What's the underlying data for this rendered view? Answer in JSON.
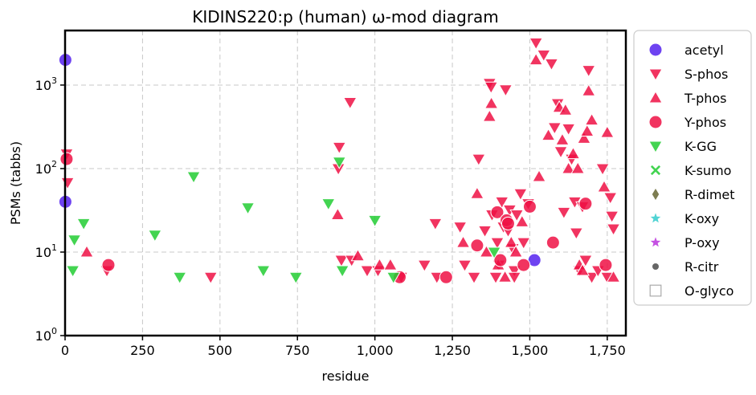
{
  "chart_data": {
    "type": "scatter",
    "title": "KIDINS220:p (human) ω-mod diagram",
    "xlabel": "residue",
    "ylabel": "PSMs (tabbs)",
    "xlim": [
      0,
      1810
    ],
    "ylim": [
      1,
      4500
    ],
    "yscale": "log",
    "grid": true,
    "legend_position": "right, outside plot",
    "x_ticks": [
      {
        "value": 0,
        "label": "0"
      },
      {
        "value": 250,
        "label": "250"
      },
      {
        "value": 500,
        "label": "500"
      },
      {
        "value": 750,
        "label": "750"
      },
      {
        "value": 1000,
        "label": "1,000"
      },
      {
        "value": 1250,
        "label": "1,250"
      },
      {
        "value": 1500,
        "label": "1,500"
      },
      {
        "value": 1750,
        "label": "1,750"
      }
    ],
    "y_ticks": [
      {
        "value": 1,
        "base": "10",
        "exp": "0"
      },
      {
        "value": 10,
        "base": "10",
        "exp": "1"
      },
      {
        "value": 100,
        "base": "10",
        "exp": "2"
      },
      {
        "value": 1000,
        "base": "10",
        "exp": "3"
      }
    ],
    "series": [
      {
        "name": "acetyl",
        "marker": "circle",
        "color": "#5522ee",
        "points": [
          [
            1,
            2000
          ],
          [
            1,
            40
          ],
          [
            1515,
            8
          ]
        ]
      },
      {
        "name": "S-phos",
        "marker": "triangle-down",
        "color": "#ee1144",
        "points": [
          [
            5,
            150
          ],
          [
            8,
            68
          ],
          [
            135,
            6
          ],
          [
            470,
            5
          ],
          [
            885,
            180
          ],
          [
            882,
            100
          ],
          [
            920,
            620
          ],
          [
            892,
            8
          ],
          [
            925,
            8
          ],
          [
            975,
            6
          ],
          [
            1010,
            6
          ],
          [
            1085,
            5
          ],
          [
            1160,
            7
          ],
          [
            1195,
            22
          ],
          [
            1200,
            5
          ],
          [
            1275,
            20
          ],
          [
            1290,
            7
          ],
          [
            1320,
            5
          ],
          [
            1335,
            130
          ],
          [
            1355,
            18
          ],
          [
            1370,
            1050
          ],
          [
            1375,
            950
          ],
          [
            1378,
            28
          ],
          [
            1390,
            5
          ],
          [
            1395,
            13
          ],
          [
            1400,
            7
          ],
          [
            1410,
            40
          ],
          [
            1415,
            20
          ],
          [
            1422,
            880
          ],
          [
            1430,
            18
          ],
          [
            1435,
            32
          ],
          [
            1445,
            11
          ],
          [
            1450,
            6
          ],
          [
            1458,
            28
          ],
          [
            1470,
            50
          ],
          [
            1480,
            13
          ],
          [
            1495,
            38
          ],
          [
            1520,
            3200
          ],
          [
            1545,
            2300
          ],
          [
            1570,
            1800
          ],
          [
            1580,
            310
          ],
          [
            1590,
            600
          ],
          [
            1600,
            160
          ],
          [
            1610,
            30
          ],
          [
            1625,
            300
          ],
          [
            1635,
            130
          ],
          [
            1645,
            40
          ],
          [
            1650,
            17
          ],
          [
            1660,
            6
          ],
          [
            1670,
            35
          ],
          [
            1680,
            8
          ],
          [
            1690,
            1500
          ],
          [
            1700,
            5
          ],
          [
            1720,
            6
          ],
          [
            1735,
            100
          ],
          [
            1750,
            5
          ],
          [
            1760,
            45
          ],
          [
            1765,
            27
          ],
          [
            1770,
            19
          ],
          [
            1450,
            5
          ]
        ]
      },
      {
        "name": "T-phos",
        "marker": "triangle-up",
        "color": "#ee1144",
        "points": [
          [
            70,
            10
          ],
          [
            880,
            28
          ],
          [
            945,
            9
          ],
          [
            1015,
            7
          ],
          [
            1050,
            7
          ],
          [
            1285,
            13
          ],
          [
            1330,
            50
          ],
          [
            1360,
            10
          ],
          [
            1370,
            420
          ],
          [
            1376,
            600
          ],
          [
            1398,
            7
          ],
          [
            1420,
            5
          ],
          [
            1440,
            13
          ],
          [
            1455,
            10
          ],
          [
            1475,
            23
          ],
          [
            1520,
            2000
          ],
          [
            1530,
            80
          ],
          [
            1560,
            250
          ],
          [
            1595,
            540
          ],
          [
            1605,
            220
          ],
          [
            1615,
            500
          ],
          [
            1625,
            100
          ],
          [
            1640,
            150
          ],
          [
            1655,
            100
          ],
          [
            1660,
            7
          ],
          [
            1670,
            6
          ],
          [
            1675,
            230
          ],
          [
            1685,
            280
          ],
          [
            1690,
            850
          ],
          [
            1700,
            380
          ],
          [
            1740,
            60
          ],
          [
            1750,
            270
          ],
          [
            1770,
            5
          ]
        ]
      },
      {
        "name": "Y-phos",
        "marker": "circle",
        "color": "#ee1144",
        "points": [
          [
            5,
            130
          ],
          [
            140,
            7
          ],
          [
            1080,
            5
          ],
          [
            1230,
            5
          ],
          [
            1330,
            12
          ],
          [
            1395,
            30
          ],
          [
            1405,
            8
          ],
          [
            1425,
            24
          ],
          [
            1430,
            22
          ],
          [
            1480,
            7
          ],
          [
            1500,
            35
          ],
          [
            1575,
            13
          ],
          [
            1680,
            38
          ],
          [
            1745,
            7
          ]
        ]
      },
      {
        "name": "K-GG",
        "marker": "triangle-down",
        "color": "#22cc33",
        "points": [
          [
            25,
            6
          ],
          [
            30,
            14
          ],
          [
            60,
            22
          ],
          [
            290,
            16
          ],
          [
            370,
            5
          ],
          [
            415,
            80
          ],
          [
            590,
            34
          ],
          [
            640,
            6
          ],
          [
            745,
            5
          ],
          [
            850,
            38
          ],
          [
            885,
            120
          ],
          [
            895,
            6
          ],
          [
            1000,
            24
          ],
          [
            1060,
            5
          ],
          [
            1385,
            10
          ]
        ]
      },
      {
        "name": "K-sumo",
        "marker": "x",
        "color": "#22cc33",
        "points": []
      },
      {
        "name": "R-dimet",
        "marker": "diamond",
        "color": "#666633",
        "points": []
      },
      {
        "name": "K-oxy",
        "marker": "star",
        "color": "#33cccc",
        "points": []
      },
      {
        "name": "P-oxy",
        "marker": "star",
        "color": "#bb33dd",
        "points": []
      },
      {
        "name": "R-citr",
        "marker": "dot",
        "color": "#666666",
        "points": []
      },
      {
        "name": "O-glyco",
        "marker": "square-open",
        "color": "#aaaaaa",
        "points": []
      }
    ]
  }
}
